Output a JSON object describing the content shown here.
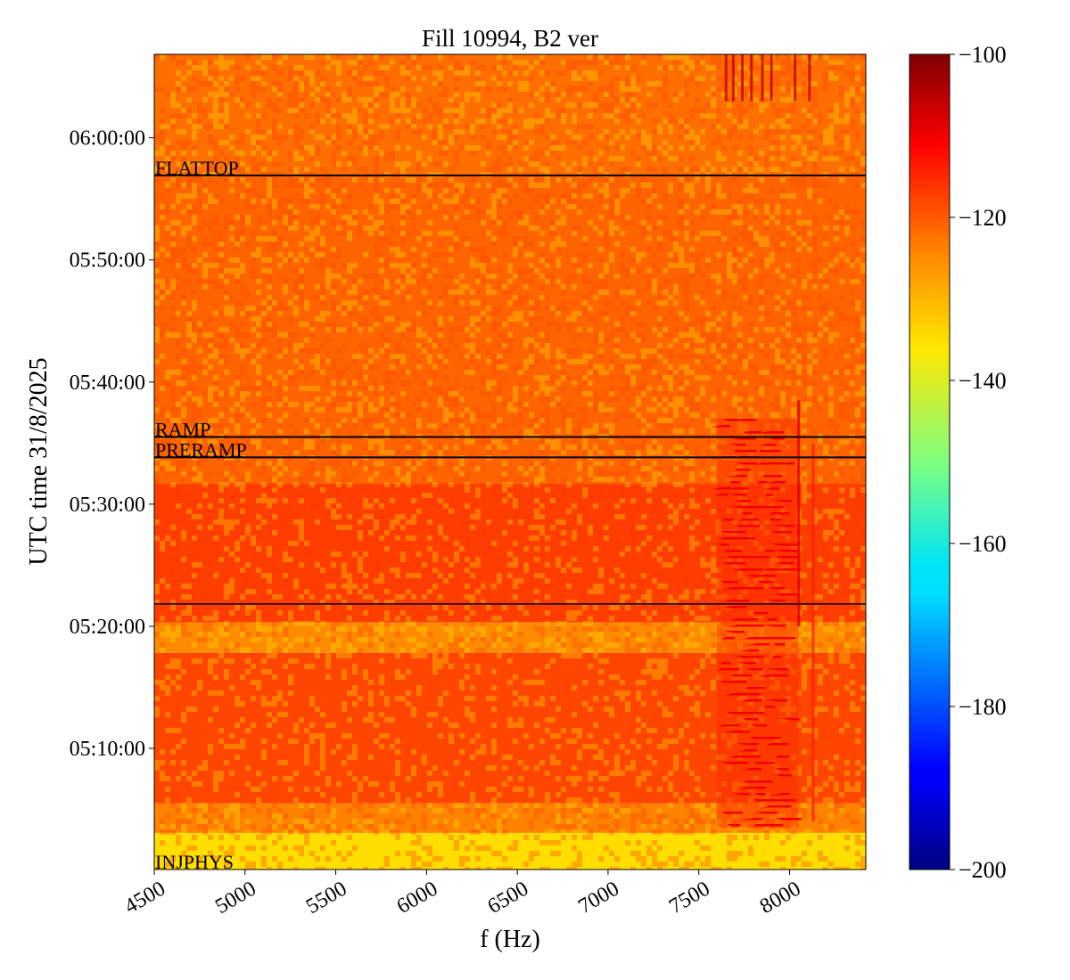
{
  "chart_data": {
    "type": "heatmap",
    "title": "Fill 10994, B2 ver",
    "xlabel": "f (Hz)",
    "ylabel": "UTC time 31/8/2025",
    "xlim": [
      4500,
      8420
    ],
    "ylim": [
      "05:00:05",
      "06:06:50"
    ],
    "x_ticks": [
      {
        "value": 4500,
        "label": "4500"
      },
      {
        "value": 5000,
        "label": "5000"
      },
      {
        "value": 5500,
        "label": "5500"
      },
      {
        "value": 6000,
        "label": "6000"
      },
      {
        "value": 6500,
        "label": "6500"
      },
      {
        "value": 7000,
        "label": "7000"
      },
      {
        "value": 7500,
        "label": "7500"
      },
      {
        "value": 8000,
        "label": "8000"
      }
    ],
    "y_ticks": [
      {
        "value": "05:10:00",
        "label": "05:10:00"
      },
      {
        "value": "05:20:00",
        "label": "05:20:00"
      },
      {
        "value": "05:30:00",
        "label": "05:30:00"
      },
      {
        "value": "05:40:00",
        "label": "05:40:00"
      },
      {
        "value": "05:50:00",
        "label": "05:50:00"
      },
      {
        "value": "06:00:00",
        "label": "06:00:00"
      }
    ],
    "colorbar": {
      "colormap": "jet",
      "range": [
        -200,
        -100
      ],
      "ticks": [
        {
          "value": -100,
          "label": "−100"
        },
        {
          "value": -120,
          "label": "−120"
        },
        {
          "value": -140,
          "label": "−140"
        },
        {
          "value": -160,
          "label": "−160"
        },
        {
          "value": -180,
          "label": "−180"
        },
        {
          "value": -200,
          "label": "−200"
        }
      ]
    },
    "annotations": [
      {
        "label": "FLATTOP",
        "time": "05:56:55"
      },
      {
        "label": "RAMP",
        "time": "05:35:30"
      },
      {
        "label": "PRERAMP",
        "time": "05:33:50"
      },
      {
        "label": "",
        "time": "05:21:50"
      },
      {
        "label": "INJPHYS",
        "time": "05:00:05"
      }
    ],
    "bands": [
      {
        "from": "05:00:05",
        "to": "05:03:05",
        "level": -135
      },
      {
        "from": "05:03:05",
        "to": "05:05:30",
        "level": -124
      },
      {
        "from": "05:05:30",
        "to": "05:17:50",
        "level": -118
      },
      {
        "from": "05:17:50",
        "to": "05:20:20",
        "level": -125
      },
      {
        "from": "05:20:20",
        "to": "05:31:40",
        "level": -117
      },
      {
        "from": "05:31:40",
        "to": "05:56:55",
        "level": -121
      },
      {
        "from": "05:56:55",
        "to": "06:06:50",
        "level": -122
      }
    ],
    "hot_region": {
      "x_from": 7600,
      "x_to": 8050,
      "time_from": "05:03:30",
      "time_to": "05:37:00",
      "level": -110
    },
    "vertical_lines": [
      {
        "f": 8050,
        "from": "05:20:00",
        "to": "05:38:30",
        "level": -108
      },
      {
        "f": 8130,
        "from": "05:04:00",
        "to": "05:35:00",
        "level": -114
      },
      {
        "f": 7650,
        "from": "06:03:00",
        "to": "06:06:50",
        "level": -106
      },
      {
        "f": 7690,
        "from": "06:03:00",
        "to": "06:06:50",
        "level": -106
      },
      {
        "f": 7740,
        "from": "06:03:00",
        "to": "06:06:50",
        "level": -106
      },
      {
        "f": 7790,
        "from": "06:03:00",
        "to": "06:06:50",
        "level": -106
      },
      {
        "f": 7850,
        "from": "06:03:00",
        "to": "06:06:50",
        "level": -106
      },
      {
        "f": 7900,
        "from": "06:03:00",
        "to": "06:06:50",
        "level": -106
      },
      {
        "f": 8030,
        "from": "06:03:00",
        "to": "06:06:50",
        "level": -106
      },
      {
        "f": 8110,
        "from": "06:03:00",
        "to": "06:06:50",
        "level": -106
      }
    ]
  }
}
